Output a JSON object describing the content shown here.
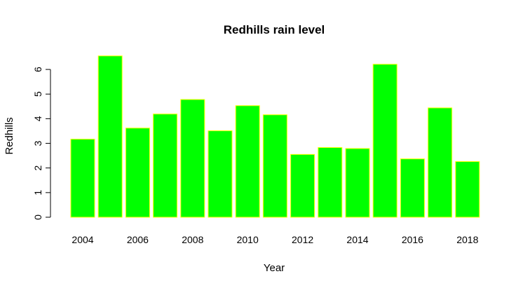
{
  "chart_data": {
    "type": "bar",
    "title": "Redhills rain level",
    "xlabel": "Year",
    "ylabel": "Redhills",
    "categories": [
      "2004",
      "2005",
      "2006",
      "2007",
      "2008",
      "2009",
      "2010",
      "2011",
      "2012",
      "2013",
      "2014",
      "2015",
      "2016",
      "2017",
      "2018"
    ],
    "values": [
      3.17,
      6.55,
      3.62,
      4.19,
      4.78,
      3.51,
      4.53,
      4.16,
      2.55,
      2.83,
      2.79,
      6.21,
      2.37,
      4.44,
      2.26
    ],
    "x_tick_labels": [
      "2004",
      "2006",
      "2008",
      "2010",
      "2012",
      "2014",
      "2016",
      "2018"
    ],
    "y_ticks": [
      0,
      1,
      2,
      3,
      4,
      5,
      6
    ],
    "ylim": [
      0,
      6.55
    ],
    "bar_color": "#00ff00",
    "bar_border_color": "#ffff00",
    "grid": false,
    "legend": "none"
  }
}
